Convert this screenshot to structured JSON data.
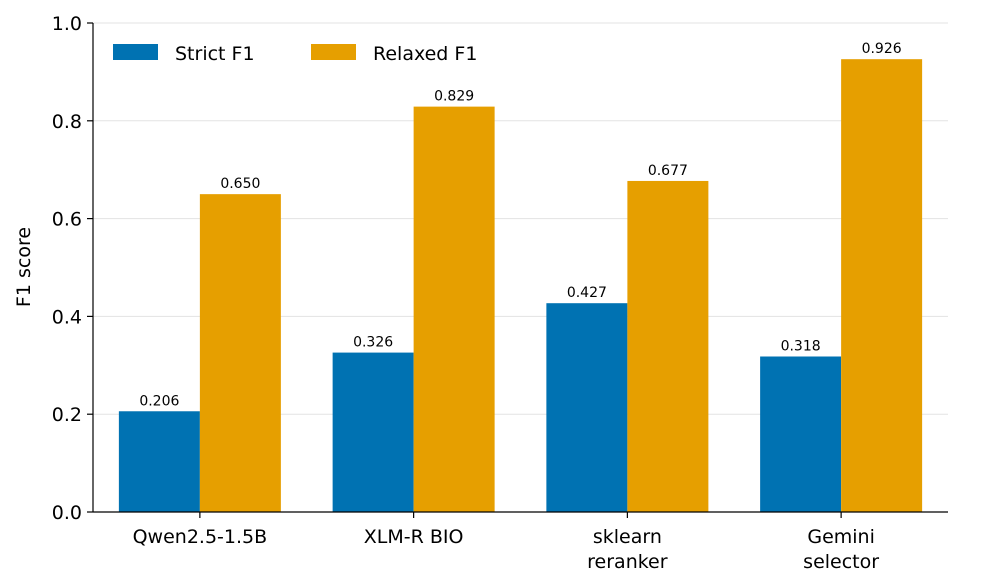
{
  "chart_data": {
    "type": "bar",
    "categories": [
      [
        "Qwen2.5-1.5B"
      ],
      [
        "XLM-R BIO"
      ],
      [
        "sklearn",
        "reranker"
      ],
      [
        "Gemini",
        "selector"
      ]
    ],
    "series": [
      {
        "name": "Strict F1",
        "color": "#0072b2",
        "values": [
          0.206,
          0.326,
          0.427,
          0.318
        ],
        "labels": [
          "0.206",
          "0.326",
          "0.427",
          "0.318"
        ]
      },
      {
        "name": "Relaxed F1",
        "color": "#e69f00",
        "values": [
          0.65,
          0.829,
          0.677,
          0.926
        ],
        "labels": [
          "0.650",
          "0.829",
          "0.677",
          "0.926"
        ]
      }
    ],
    "title": "",
    "xlabel": "",
    "ylabel": "F1 score",
    "ylim": [
      0,
      1.0
    ],
    "yticks": [
      0.0,
      0.2,
      0.4,
      0.6,
      0.8,
      1.0
    ],
    "ytick_labels": [
      "0.0",
      "0.2",
      "0.4",
      "0.6",
      "0.8",
      "1.0"
    ],
    "grid": "y",
    "legend": "top-left"
  }
}
